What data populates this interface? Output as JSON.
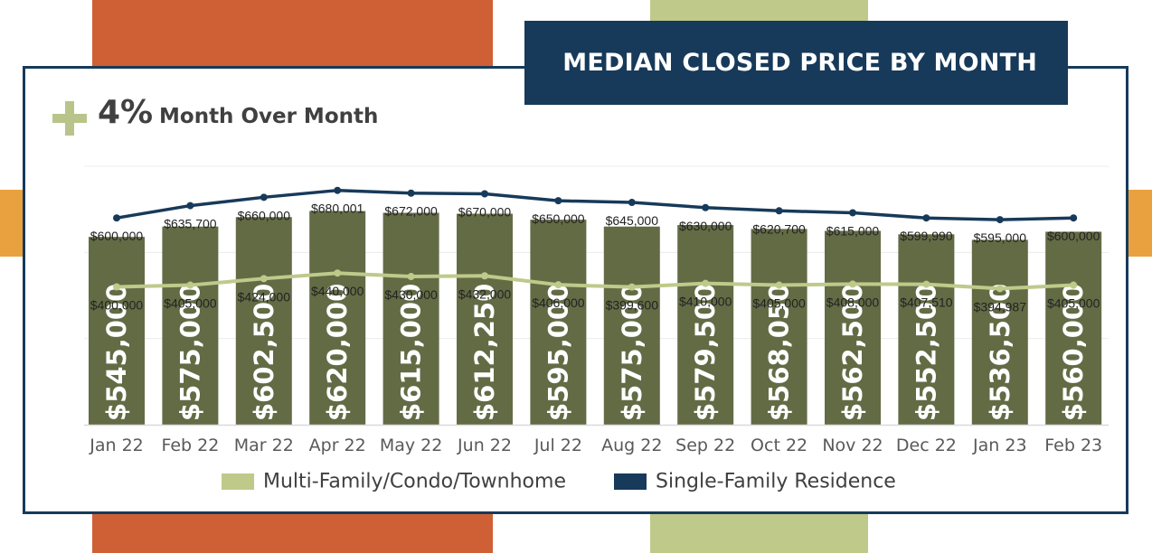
{
  "title": "MEDIAN CLOSED PRICE BY MONTH",
  "headline": {
    "sign": "+",
    "value": "4%",
    "label": "Month Over Month"
  },
  "colors": {
    "navy": "#173a5a",
    "bar": "#636b45",
    "light_green": "#bfc98a",
    "orange_red": "#cf5f35",
    "orange": "#e9a13f",
    "plus": "#b8c48a",
    "text": "#404040"
  },
  "chart_data": {
    "type": "bar",
    "categories": [
      "Jan 22",
      "Feb 22",
      "Mar 22",
      "Apr 22",
      "May 22",
      "Jun 22",
      "Jul 22",
      "Aug 22",
      "Sep 22",
      "Oct 22",
      "Nov 22",
      "Dec 22",
      "Jan 23",
      "Feb 23"
    ],
    "bars": {
      "values": [
        545000,
        575000,
        602500,
        620000,
        615000,
        612250,
        595000,
        575000,
        579500,
        568050,
        562500,
        552500,
        536500,
        560000
      ],
      "labels": [
        "$545,000",
        "$575,000",
        "$602,500",
        "$620,000",
        "$615,000",
        "$612,250",
        "$595,000",
        "$575,000",
        "$579,500",
        "$568,050",
        "$562,500",
        "$552,500",
        "$536,500",
        "$560,000"
      ]
    },
    "series": [
      {
        "name": "Single-Family Residence",
        "type": "line",
        "color": "#173a5a",
        "values": [
          600000,
          635700,
          660000,
          680001,
          672000,
          670000,
          650000,
          645000,
          630000,
          620700,
          615000,
          599990,
          595000,
          600000
        ],
        "labels": [
          "$600,000",
          "$635,700",
          "$660,000",
          "$680,001",
          "$672,000",
          "$670,000",
          "$650,000",
          "$645,000",
          "$630,000",
          "$620,700",
          "$615,000",
          "$599,990",
          "$595,000",
          "$600,000"
        ]
      },
      {
        "name": "Multi-Family/Condo/Townhome",
        "type": "line",
        "color": "#bfc98a",
        "values": [
          400000,
          405000,
          424000,
          440000,
          430000,
          432000,
          406000,
          399600,
          410000,
          405000,
          408000,
          407510,
          394987,
          405000
        ],
        "labels": [
          "$400,000",
          "$405,000",
          "$424,000",
          "$440,000",
          "$430,000",
          "$432,000",
          "$406,000",
          "$399,600",
          "$410,000",
          "$405,000",
          "$408,000",
          "$407,510",
          "$394,987",
          "$405,000"
        ]
      }
    ],
    "ylim": [
      0,
      750000
    ],
    "grid": true,
    "legend": "bottom"
  },
  "legend": {
    "multi": "Multi-Family/Condo/Townhome",
    "single": "Single-Family Residence"
  }
}
